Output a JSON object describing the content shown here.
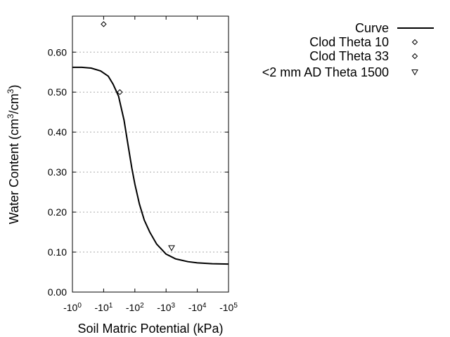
{
  "chart_data": {
    "type": "scatter",
    "xlabel": "Soil Matric Potential (kPa)",
    "ylabel_base": "Water Content (cm",
    "ylabel_sup1": "3",
    "ylabel_mid": "/cm",
    "ylabel_sup2": "3",
    "ylabel_end": ")",
    "x_scale": "log",
    "xlim": [
      1,
      100000
    ],
    "ylim": [
      0.0,
      0.69
    ],
    "grid": "horizontal dotted",
    "legend_position": "top-right",
    "x_ticks": [
      {
        "value": 1,
        "base": "-10",
        "exp": "0"
      },
      {
        "value": 10,
        "base": "-10",
        "exp": "1"
      },
      {
        "value": 100,
        "base": "-10",
        "exp": "2"
      },
      {
        "value": 1000,
        "base": "-10",
        "exp": "3"
      },
      {
        "value": 10000,
        "base": "-10",
        "exp": "4"
      },
      {
        "value": 100000,
        "base": "-10",
        "exp": "5"
      }
    ],
    "y_ticks": [
      {
        "value": 0.0,
        "label": "0.00"
      },
      {
        "value": 0.1,
        "label": "0.10"
      },
      {
        "value": 0.2,
        "label": "0.20"
      },
      {
        "value": 0.3,
        "label": "0.30"
      },
      {
        "value": 0.4,
        "label": "0.40"
      },
      {
        "value": 0.5,
        "label": "0.50"
      },
      {
        "value": 0.6,
        "label": "0.60"
      }
    ],
    "series": [
      {
        "name": "Curve",
        "kind": "line",
        "points": [
          {
            "x": 1,
            "y": 0.562
          },
          {
            "x": 2,
            "y": 0.562
          },
          {
            "x": 4,
            "y": 0.56
          },
          {
            "x": 8,
            "y": 0.553
          },
          {
            "x": 14,
            "y": 0.54
          },
          {
            "x": 20,
            "y": 0.52
          },
          {
            "x": 30,
            "y": 0.49
          },
          {
            "x": 45,
            "y": 0.43
          },
          {
            "x": 60,
            "y": 0.37
          },
          {
            "x": 80,
            "y": 0.31
          },
          {
            "x": 100,
            "y": 0.27
          },
          {
            "x": 140,
            "y": 0.22
          },
          {
            "x": 200,
            "y": 0.18
          },
          {
            "x": 300,
            "y": 0.15
          },
          {
            "x": 500,
            "y": 0.12
          },
          {
            "x": 1000,
            "y": 0.095
          },
          {
            "x": 2000,
            "y": 0.083
          },
          {
            "x": 5000,
            "y": 0.076
          },
          {
            "x": 10000,
            "y": 0.073
          },
          {
            "x": 30000,
            "y": 0.071
          },
          {
            "x": 100000,
            "y": 0.07
          }
        ]
      },
      {
        "name": "Clod Theta 10",
        "kind": "diamond",
        "points": [
          {
            "x": 10,
            "y": 0.67
          }
        ]
      },
      {
        "name": "Clod Theta 33",
        "kind": "diamond",
        "points": [
          {
            "x": 33,
            "y": 0.5
          }
        ]
      },
      {
        "name": "<2 mm AD Theta 1500",
        "kind": "triangle-down",
        "points": [
          {
            "x": 1500,
            "y": 0.11
          }
        ]
      }
    ]
  }
}
